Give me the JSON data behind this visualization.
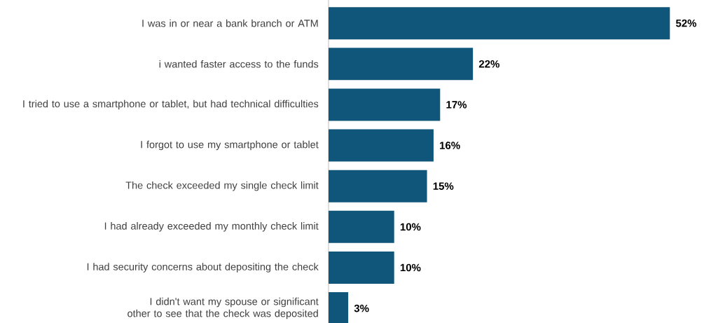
{
  "chart_data": {
    "type": "bar",
    "orientation": "horizontal",
    "color": "#10557a",
    "categories": [
      "I was in or near a bank branch or ATM",
      "i wanted faster access to the funds",
      "I tried to use a smartphone or tablet, but had technical difficulties",
      "I forgot to use my smartphone or tablet",
      "The check exceeded my single check limit",
      "I had already exceeded my monthly check limit",
      "I had security concerns about depositing the check",
      "I didn't want my spouse or significant other to see that the check was deposited"
    ],
    "values": [
      52,
      22,
      17,
      16,
      15,
      10,
      10,
      3
    ],
    "value_labels": [
      "52%",
      "22%",
      "17%",
      "16%",
      "15%",
      "10%",
      "10%",
      "3%"
    ]
  }
}
